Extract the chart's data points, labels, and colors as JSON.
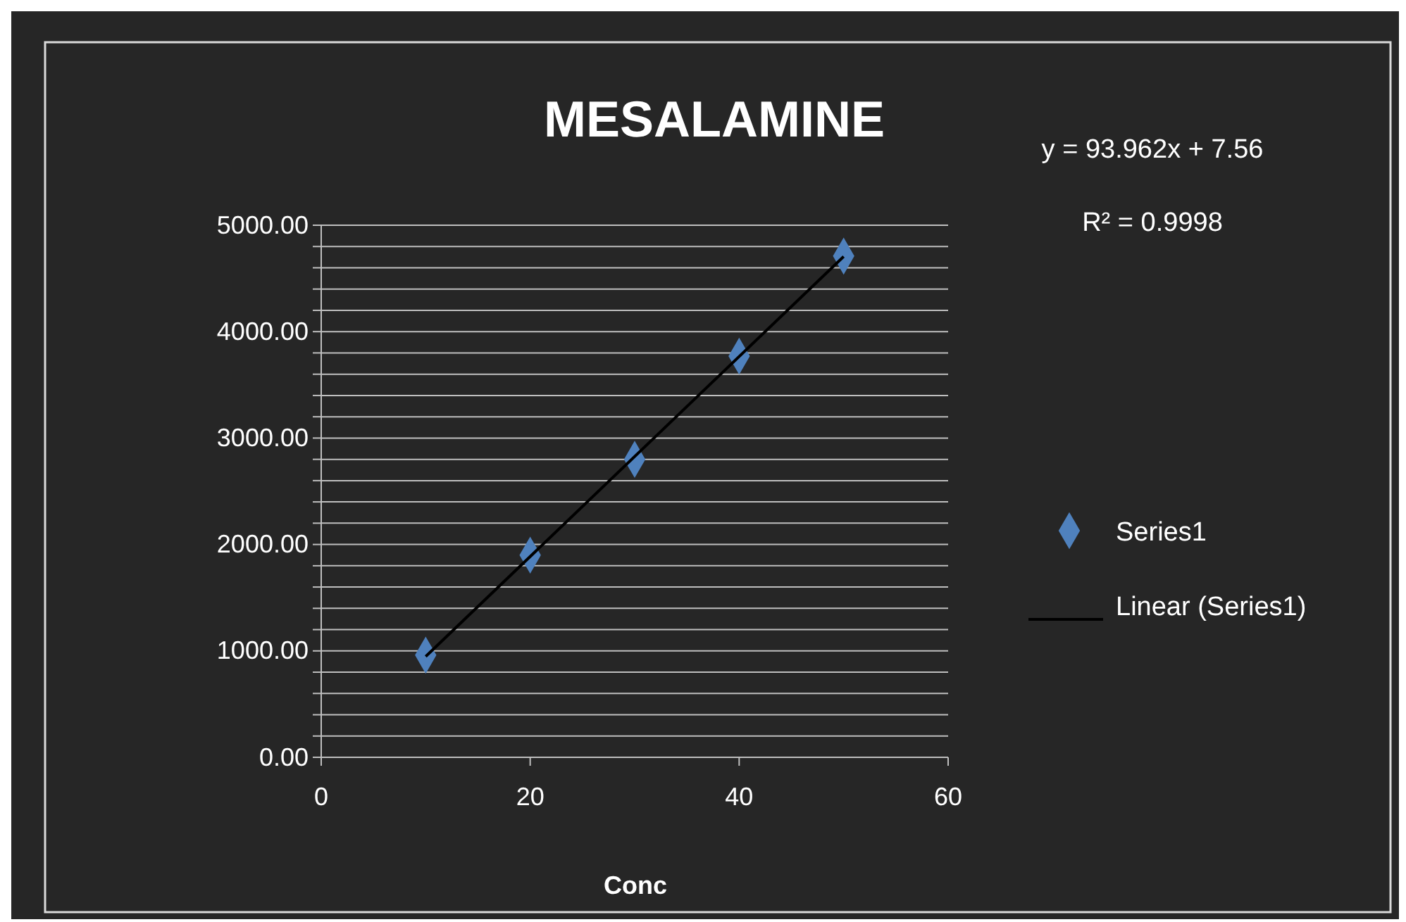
{
  "chart_data": {
    "type": "scatter",
    "title": "MESALAMINE",
    "xlabel": "Conc",
    "annotations": [
      "y = 93.962x + 7.56",
      "R² = 0.9998"
    ],
    "series": [
      {
        "name": "Series1",
        "color": "#4f81bd",
        "marker": "diamond",
        "x": [
          10,
          20,
          30,
          40,
          50
        ],
        "values": [
          960,
          1900,
          2800,
          3770,
          4710
        ]
      },
      {
        "name": "Linear (Series1)",
        "type": "line",
        "color": "#000000",
        "line_style": "solid",
        "x": [
          10,
          50
        ],
        "values": [
          947,
          4706
        ]
      }
    ],
    "xlim": [
      0,
      60
    ],
    "xticks": [
      0,
      20,
      40,
      60
    ],
    "ylim": [
      0,
      5000
    ],
    "yticks": [
      {
        "value": 0,
        "label": "0.00"
      },
      {
        "value": 200,
        "label": null
      },
      {
        "value": 400,
        "label": null
      },
      {
        "value": 600,
        "label": null
      },
      {
        "value": 800,
        "label": null
      },
      {
        "value": 1000,
        "label": "1000.00"
      },
      {
        "value": 1200,
        "label": null
      },
      {
        "value": 1400,
        "label": null
      },
      {
        "value": 1600,
        "label": null
      },
      {
        "value": 1800,
        "label": null
      },
      {
        "value": 2000,
        "label": "2000.00"
      },
      {
        "value": 2200,
        "label": null
      },
      {
        "value": 2400,
        "label": null
      },
      {
        "value": 2600,
        "label": null
      },
      {
        "value": 2800,
        "label": null
      },
      {
        "value": 3000,
        "label": "3000.00"
      },
      {
        "value": 3200,
        "label": null
      },
      {
        "value": 3400,
        "label": null
      },
      {
        "value": 3600,
        "label": null
      },
      {
        "value": 3800,
        "label": null
      },
      {
        "value": 4000,
        "label": "4000.00"
      },
      {
        "value": 4200,
        "label": null
      },
      {
        "value": 4400,
        "label": null
      },
      {
        "value": 4600,
        "label": null
      },
      {
        "value": 4800,
        "label": null
      },
      {
        "value": 5000,
        "label": "5000.00"
      }
    ],
    "grid": "y",
    "legend": "right"
  }
}
